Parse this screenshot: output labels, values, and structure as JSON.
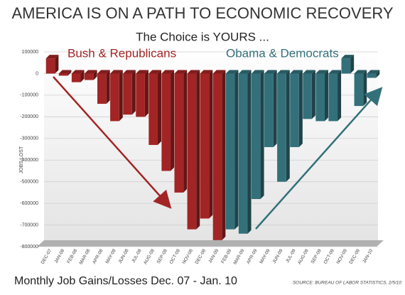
{
  "chart_data": {
    "type": "bar",
    "title": "AMERICA IS ON A PATH TO ECONOMIC RECOVERY",
    "subtitle": "The Choice is YOURS ...",
    "y_label": "JOBS LOST",
    "footer": "Monthly Job Gains/Losses Dec. 07 - Jan. 10",
    "source": "SOURCE: BUREAU OF LABOR STATISTICS, 2/5/10",
    "categories": [
      "DEC-07",
      "JAN-08",
      "FEB-08",
      "MAR-08",
      "APR-08",
      "MAY-08",
      "JUN-08",
      "JUL-08",
      "AUG-08",
      "SEP-08",
      "OCT-08",
      "NOV-08",
      "DEC-08",
      "JAN-09",
      "FEB-09",
      "MAR-09",
      "APR-09",
      "MAY-09",
      "JUN-09",
      "JUL-09",
      "AUG-09",
      "SEP-09",
      "OCT-09",
      "NOV-09",
      "DEC-09",
      "JAN-10"
    ],
    "series": [
      {
        "name": "Bush & Republicans",
        "color": "#a32424",
        "values": [
          70000,
          -10000,
          -40000,
          -30000,
          -140000,
          -220000,
          -190000,
          -200000,
          -330000,
          -450000,
          -550000,
          -720000,
          -670000,
          -770000,
          null,
          null,
          null,
          null,
          null,
          null,
          null,
          null,
          null,
          null,
          null,
          null
        ]
      },
      {
        "name": "Obama & Democrats",
        "color": "#33707a",
        "values": [
          null,
          null,
          null,
          null,
          null,
          null,
          null,
          null,
          null,
          null,
          null,
          null,
          null,
          null,
          -720000,
          -740000,
          -580000,
          -340000,
          -500000,
          -340000,
          -210000,
          -220000,
          -220000,
          70000,
          -150000,
          -20000
        ]
      }
    ],
    "ylim": [
      -800000,
      100000
    ],
    "yticks": [
      100000,
      0,
      -100000,
      -200000,
      -300000,
      -400000,
      -500000,
      -600000,
      -700000,
      -800000
    ],
    "grid": true
  }
}
